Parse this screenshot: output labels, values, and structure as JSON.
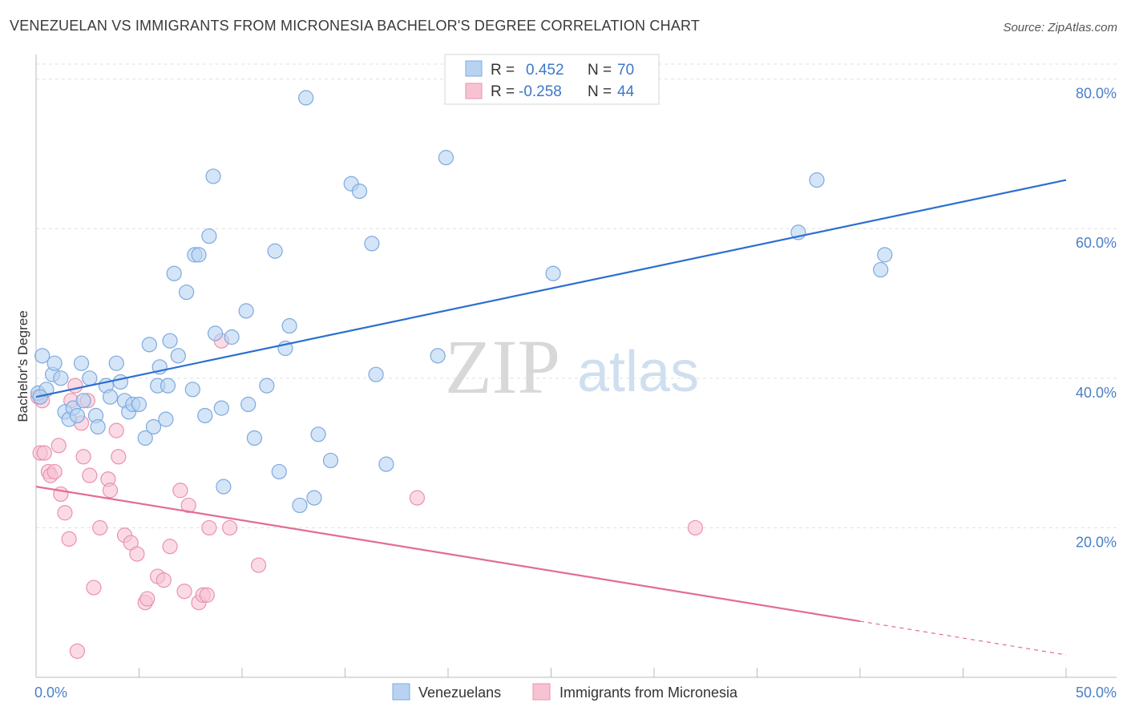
{
  "title": "VENEZUELAN VS IMMIGRANTS FROM MICRONESIA BACHELOR'S DEGREE CORRELATION CHART",
  "source": "Source: ZipAtlas.com",
  "watermark": {
    "zip": "ZIP",
    "atlas": "atlas"
  },
  "colors": {
    "blue_fill": "#b8d3f2",
    "blue_stroke": "#7ea9dd",
    "blue_line": "#2b6fcf",
    "pink_fill": "#f7c3d3",
    "pink_stroke": "#eb91ad",
    "pink_line": "#e26c95",
    "grid": "#e0e0e0",
    "tick_text": "#4a7fc8"
  },
  "legend": {
    "rows": [
      {
        "r_label": "R =",
        "r_value": "0.452",
        "n_label": "N =",
        "n_value": "70"
      },
      {
        "r_label": "R =",
        "r_value": "-0.258",
        "n_label": "N =",
        "n_value": "44"
      }
    ]
  },
  "bottom_legend": [
    "Venezuelans",
    "Immigrants from Micronesia"
  ],
  "chart_data": {
    "type": "scatter",
    "ylabel": "Bachelor's Degree",
    "xlabel": "",
    "xlim": [
      0,
      50
    ],
    "ylim": [
      0,
      82
    ],
    "x_tick_labels": [
      "0.0%",
      "50.0%"
    ],
    "y_ticks": [
      20,
      40,
      60,
      80
    ],
    "y_tick_labels": [
      "20.0%",
      "40.0%",
      "60.0%",
      "80.0%"
    ],
    "grid": true,
    "legend_position": "top-center",
    "series": [
      {
        "name": "Venezuelans",
        "trend": {
          "x": [
            0,
            50
          ],
          "y": [
            37.5,
            66.5
          ],
          "solid_to_x": 50
        },
        "points": [
          [
            0.1,
            38.0
          ],
          [
            0.3,
            43.0
          ],
          [
            0.5,
            38.5
          ],
          [
            0.8,
            40.5
          ],
          [
            0.9,
            42.0
          ],
          [
            1.2,
            40.0
          ],
          [
            1.4,
            35.5
          ],
          [
            1.6,
            34.5
          ],
          [
            1.8,
            36.0
          ],
          [
            2.0,
            35.0
          ],
          [
            2.2,
            42.0
          ],
          [
            2.3,
            37.0
          ],
          [
            2.6,
            40.0
          ],
          [
            2.9,
            35.0
          ],
          [
            3.0,
            33.5
          ],
          [
            3.4,
            39.0
          ],
          [
            3.6,
            37.5
          ],
          [
            3.9,
            42.0
          ],
          [
            4.1,
            39.5
          ],
          [
            4.3,
            37.0
          ],
          [
            4.5,
            35.5
          ],
          [
            4.7,
            36.5
          ],
          [
            5.0,
            36.5
          ],
          [
            5.3,
            32.0
          ],
          [
            5.5,
            44.5
          ],
          [
            5.7,
            33.5
          ],
          [
            5.9,
            39.0
          ],
          [
            6.0,
            41.5
          ],
          [
            6.3,
            34.5
          ],
          [
            6.4,
            39.0
          ],
          [
            6.5,
            45.0
          ],
          [
            6.7,
            54.0
          ],
          [
            6.9,
            43.0
          ],
          [
            7.3,
            51.5
          ],
          [
            7.6,
            38.5
          ],
          [
            7.7,
            56.5
          ],
          [
            7.9,
            56.5
          ],
          [
            8.2,
            35.0
          ],
          [
            8.4,
            59.0
          ],
          [
            8.6,
            67.0
          ],
          [
            8.7,
            46.0
          ],
          [
            9.0,
            36.0
          ],
          [
            9.1,
            25.5
          ],
          [
            9.5,
            45.5
          ],
          [
            10.2,
            49.0
          ],
          [
            10.3,
            36.5
          ],
          [
            10.6,
            32.0
          ],
          [
            11.2,
            39.0
          ],
          [
            11.6,
            57.0
          ],
          [
            11.8,
            27.5
          ],
          [
            12.1,
            44.0
          ],
          [
            12.3,
            47.0
          ],
          [
            12.8,
            23.0
          ],
          [
            13.1,
            77.5
          ],
          [
            13.5,
            24.0
          ],
          [
            13.7,
            32.5
          ],
          [
            14.3,
            29.0
          ],
          [
            15.3,
            66.0
          ],
          [
            15.7,
            65.0
          ],
          [
            16.3,
            58.0
          ],
          [
            16.5,
            40.5
          ],
          [
            17.0,
            28.5
          ],
          [
            19.5,
            43.0
          ],
          [
            19.9,
            69.5
          ],
          [
            25.1,
            54.0
          ],
          [
            37.0,
            59.5
          ],
          [
            37.9,
            66.5
          ],
          [
            41.0,
            54.5
          ],
          [
            41.2,
            56.5
          ],
          [
            0.2,
            37.5
          ]
        ]
      },
      {
        "name": "Immigrants from Micronesia",
        "trend": {
          "x": [
            0,
            50
          ],
          "y": [
            25.5,
            3.0
          ],
          "solid_to_x": 40
        },
        "points": [
          [
            0.1,
            37.5
          ],
          [
            0.2,
            30.0
          ],
          [
            0.4,
            30.0
          ],
          [
            0.6,
            27.5
          ],
          [
            0.7,
            27.0
          ],
          [
            0.9,
            27.5
          ],
          [
            1.1,
            31.0
          ],
          [
            1.2,
            24.5
          ],
          [
            1.4,
            22.0
          ],
          [
            1.6,
            18.5
          ],
          [
            1.7,
            37.0
          ],
          [
            1.9,
            39.0
          ],
          [
            2.0,
            3.5
          ],
          [
            2.2,
            34.0
          ],
          [
            2.3,
            29.5
          ],
          [
            2.5,
            37.0
          ],
          [
            2.6,
            27.0
          ],
          [
            2.8,
            12.0
          ],
          [
            3.1,
            20.0
          ],
          [
            3.5,
            26.5
          ],
          [
            3.6,
            25.0
          ],
          [
            3.9,
            33.0
          ],
          [
            4.0,
            29.5
          ],
          [
            4.3,
            19.0
          ],
          [
            4.6,
            18.0
          ],
          [
            4.9,
            16.5
          ],
          [
            5.3,
            10.0
          ],
          [
            5.4,
            10.5
          ],
          [
            5.9,
            13.5
          ],
          [
            6.2,
            13.0
          ],
          [
            6.5,
            17.5
          ],
          [
            7.0,
            25.0
          ],
          [
            7.2,
            11.5
          ],
          [
            7.4,
            23.0
          ],
          [
            7.9,
            10.0
          ],
          [
            8.1,
            11.0
          ],
          [
            8.3,
            11.0
          ],
          [
            8.4,
            20.0
          ],
          [
            9.0,
            45.0
          ],
          [
            9.4,
            20.0
          ],
          [
            10.8,
            15.0
          ],
          [
            18.5,
            24.0
          ],
          [
            32.0,
            20.0
          ],
          [
            0.3,
            37.0
          ]
        ]
      }
    ]
  }
}
